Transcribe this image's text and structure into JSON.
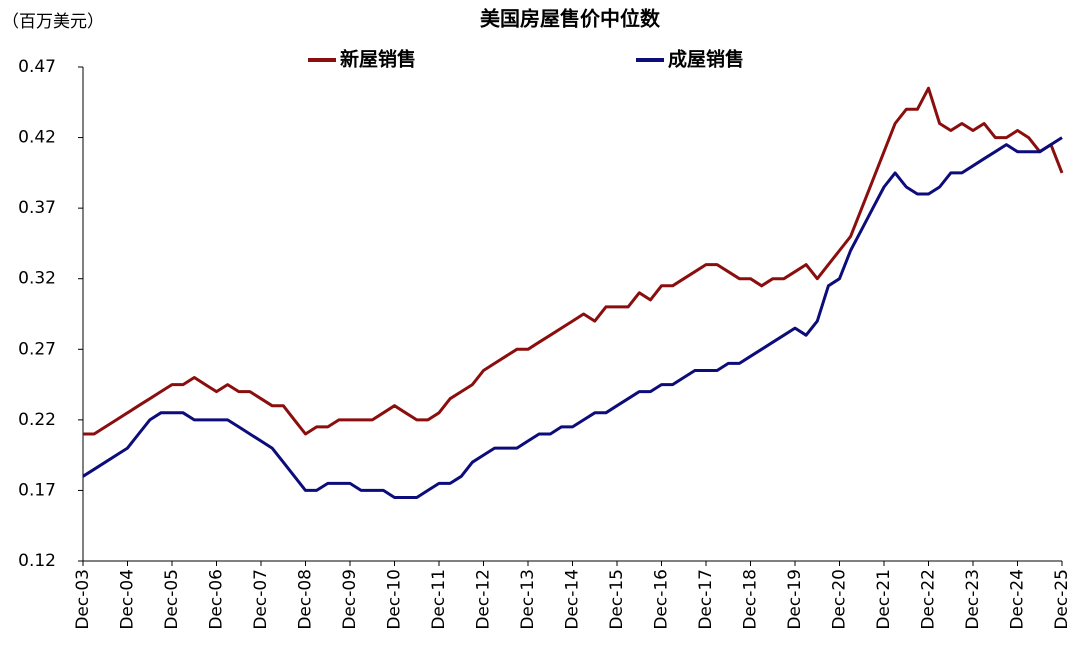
{
  "chart_data": {
    "type": "line",
    "title": "美国房屋售价中位数",
    "y_label": "（百万美元）",
    "categories": [
      "Dec-03",
      null,
      null,
      null,
      "Dec-04",
      null,
      null,
      null,
      "Dec-05",
      null,
      null,
      null,
      "Dec-06",
      null,
      null,
      null,
      "Dec-07",
      null,
      null,
      null,
      "Dec-08",
      null,
      null,
      null,
      "Dec-09",
      null,
      null,
      null,
      "Dec-10",
      null,
      null,
      null,
      "Dec-11",
      null,
      null,
      null,
      "Dec-12",
      null,
      null,
      null,
      "Dec-13",
      null,
      null,
      null,
      "Dec-14",
      null,
      null,
      null,
      "Dec-15",
      null,
      null,
      null,
      "Dec-16",
      null,
      null,
      null,
      "Dec-17",
      null,
      null,
      null,
      "Dec-18",
      null,
      null,
      null,
      "Dec-19",
      null,
      null,
      null,
      "Dec-20",
      null,
      null,
      null,
      "Dec-21",
      null,
      null,
      null,
      "Dec-22",
      null,
      null,
      null,
      "Dec-23",
      null,
      null,
      null,
      "Dec-24",
      null,
      null,
      null,
      "Dec-25"
    ],
    "series": [
      {
        "name": "新屋销售",
        "color": "#8b0e0e",
        "values": [
          0.21,
          0.21,
          0.215,
          0.22,
          0.225,
          0.23,
          0.235,
          0.24,
          0.245,
          0.245,
          0.25,
          0.245,
          0.24,
          0.245,
          0.24,
          0.24,
          0.235,
          0.23,
          0.23,
          0.22,
          0.21,
          0.215,
          0.215,
          0.22,
          0.22,
          0.22,
          0.22,
          0.225,
          0.23,
          0.225,
          0.22,
          0.22,
          0.225,
          0.235,
          0.24,
          0.245,
          0.255,
          0.26,
          0.265,
          0.27,
          0.27,
          0.275,
          0.28,
          0.285,
          0.29,
          0.295,
          0.29,
          0.3,
          0.3,
          0.3,
          0.31,
          0.305,
          0.315,
          0.315,
          0.32,
          0.325,
          0.33,
          0.33,
          0.325,
          0.32,
          0.32,
          0.315,
          0.32,
          0.32,
          0.325,
          0.33,
          0.32,
          0.33,
          0.34,
          0.35,
          0.37,
          0.39,
          0.41,
          0.43,
          0.44,
          0.44,
          0.455,
          0.43,
          0.425,
          0.43,
          0.425,
          0.43,
          0.42,
          0.42,
          0.425,
          0.42,
          0.41,
          0.415,
          0.395
        ]
      },
      {
        "name": "成屋销售",
        "color": "#0c0c7a",
        "values": [
          0.18,
          0.185,
          0.19,
          0.195,
          0.2,
          0.21,
          0.22,
          0.225,
          0.225,
          0.225,
          0.22,
          0.22,
          0.22,
          0.22,
          0.215,
          0.21,
          0.205,
          0.2,
          0.19,
          0.18,
          0.17,
          0.17,
          0.175,
          0.175,
          0.175,
          0.17,
          0.17,
          0.17,
          0.165,
          0.165,
          0.165,
          0.17,
          0.175,
          0.175,
          0.18,
          0.19,
          0.195,
          0.2,
          0.2,
          0.2,
          0.205,
          0.21,
          0.21,
          0.215,
          0.215,
          0.22,
          0.225,
          0.225,
          0.23,
          0.235,
          0.24,
          0.24,
          0.245,
          0.245,
          0.25,
          0.255,
          0.255,
          0.255,
          0.26,
          0.26,
          0.265,
          0.27,
          0.275,
          0.28,
          0.285,
          0.28,
          0.29,
          0.315,
          0.32,
          0.34,
          0.355,
          0.37,
          0.385,
          0.395,
          0.385,
          0.38,
          0.38,
          0.385,
          0.395,
          0.395,
          0.4,
          0.405,
          0.41,
          0.415,
          0.41,
          0.41,
          0.41,
          0.415,
          0.42
        ]
      }
    ],
    "ylim": [
      0.12,
      0.47
    ],
    "yticks": [
      0.12,
      0.17,
      0.22,
      0.27,
      0.32,
      0.37,
      0.42,
      0.47
    ],
    "grid": false
  }
}
